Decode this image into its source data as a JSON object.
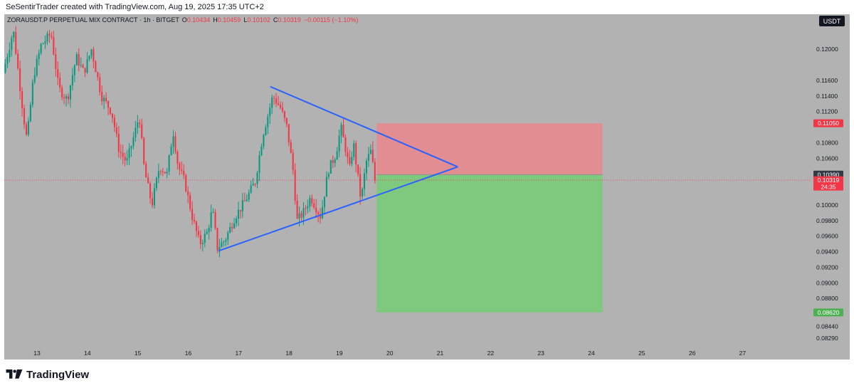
{
  "header": {
    "watermark": "SeSentirTrader created with TradingView.com, Aug 19, 2025 17:35 UTC+2"
  },
  "chart_data": {
    "type": "candlestick",
    "symbol_line": {
      "symbol": "ZORAUSDT.P PERPETUAL MIX CONTRACT · 1h · BITGET",
      "open_label": "O",
      "open": "0.10434",
      "high_label": "H",
      "high": "0.10459",
      "low_label": "L",
      "low": "0.10102",
      "close_label": "C",
      "close": "0.10319",
      "change": "−0.00115 (−1.10%)"
    },
    "currency": "USDT",
    "ylim": [
      0.0818,
      0.1245
    ],
    "y_ticks": [
      "0.12000",
      "0.11600",
      "0.11400",
      "0.11200",
      "0.10800",
      "0.10600",
      "0.10000",
      "0.09800",
      "0.09600",
      "0.09400",
      "0.09200",
      "0.09000",
      "0.08800",
      "0.08440",
      "0.08290"
    ],
    "y_tick_values": [
      0.12,
      0.116,
      0.114,
      0.112,
      0.108,
      0.106,
      0.1,
      0.098,
      0.096,
      0.094,
      0.092,
      0.09,
      0.088,
      0.0844,
      0.0829
    ],
    "x_ticks": [
      "13",
      "14",
      "15",
      "16",
      "17",
      "18",
      "19",
      "20",
      "21",
      "22",
      "23",
      "24",
      "25",
      "26",
      "27"
    ],
    "x_tick_day": [
      13,
      14,
      15,
      16,
      17,
      18,
      19,
      20,
      21,
      22,
      23,
      24,
      25,
      26,
      27
    ],
    "xlim_day": [
      12.35,
      28.35
    ],
    "price_tags": {
      "stop": {
        "label": "0.11050",
        "value": 0.1105,
        "color": "#f23645"
      },
      "entry": {
        "label": "0.10390",
        "value": 0.1039,
        "color": "#363a45"
      },
      "current": {
        "label": "0.10319",
        "value": 0.10319,
        "countdown": "24:35",
        "color": "#f23645"
      },
      "target": {
        "label": "0.08620",
        "value": 0.0862,
        "color": "#4caf50"
      }
    },
    "position": {
      "kind": "short",
      "start_day": 19.74,
      "end_day": 24.22,
      "entry": 0.1039,
      "stop": 0.1105,
      "target": 0.0862,
      "risk_color": "#e28d92",
      "reward_color": "#7fc97f"
    },
    "trendlines": [
      {
        "name": "upper",
        "from": [
          17.63,
          0.1152
        ],
        "to": [
          21.35,
          0.1049
        ],
        "color": "#2962ff"
      },
      {
        "name": "lower",
        "from": [
          16.6,
          0.0941
        ],
        "to": [
          21.35,
          0.1049
        ],
        "color": "#2962ff"
      }
    ],
    "series_path": [
      [
        12.35,
        0.117
      ],
      [
        12.55,
        0.1225
      ],
      [
        12.75,
        0.1115
      ],
      [
        12.82,
        0.1083
      ],
      [
        12.95,
        0.1165
      ],
      [
        13.1,
        0.1205
      ],
      [
        13.3,
        0.122
      ],
      [
        13.45,
        0.115
      ],
      [
        13.62,
        0.1135
      ],
      [
        13.8,
        0.119
      ],
      [
        13.95,
        0.117
      ],
      [
        14.1,
        0.12
      ],
      [
        14.3,
        0.114
      ],
      [
        14.5,
        0.112
      ],
      [
        14.65,
        0.107
      ],
      [
        14.8,
        0.1055
      ],
      [
        14.95,
        0.109
      ],
      [
        15.05,
        0.1115
      ],
      [
        15.15,
        0.1045
      ],
      [
        15.3,
        0.1
      ],
      [
        15.45,
        0.105
      ],
      [
        15.6,
        0.104
      ],
      [
        15.72,
        0.1095
      ],
      [
        15.82,
        0.105
      ],
      [
        15.95,
        0.103
      ],
      [
        16.1,
        0.0985
      ],
      [
        16.25,
        0.095
      ],
      [
        16.4,
        0.0965
      ],
      [
        16.5,
        0.0995
      ],
      [
        16.6,
        0.0945
      ],
      [
        16.75,
        0.0955
      ],
      [
        16.95,
        0.0985
      ],
      [
        17.15,
        0.1005
      ],
      [
        17.35,
        0.103
      ],
      [
        17.5,
        0.109
      ],
      [
        17.7,
        0.114
      ],
      [
        17.85,
        0.1125
      ],
      [
        17.98,
        0.11
      ],
      [
        18.1,
        0.1045
      ],
      [
        18.18,
        0.098
      ],
      [
        18.3,
        0.099
      ],
      [
        18.45,
        0.101
      ],
      [
        18.65,
        0.0985
      ],
      [
        18.8,
        0.1045
      ],
      [
        18.95,
        0.1065
      ],
      [
        19.05,
        0.11
      ],
      [
        19.15,
        0.107
      ],
      [
        19.22,
        0.1045
      ],
      [
        19.3,
        0.108
      ],
      [
        19.45,
        0.1005
      ],
      [
        19.55,
        0.1055
      ],
      [
        19.65,
        0.107
      ],
      [
        19.72,
        0.1032
      ]
    ]
  }
}
